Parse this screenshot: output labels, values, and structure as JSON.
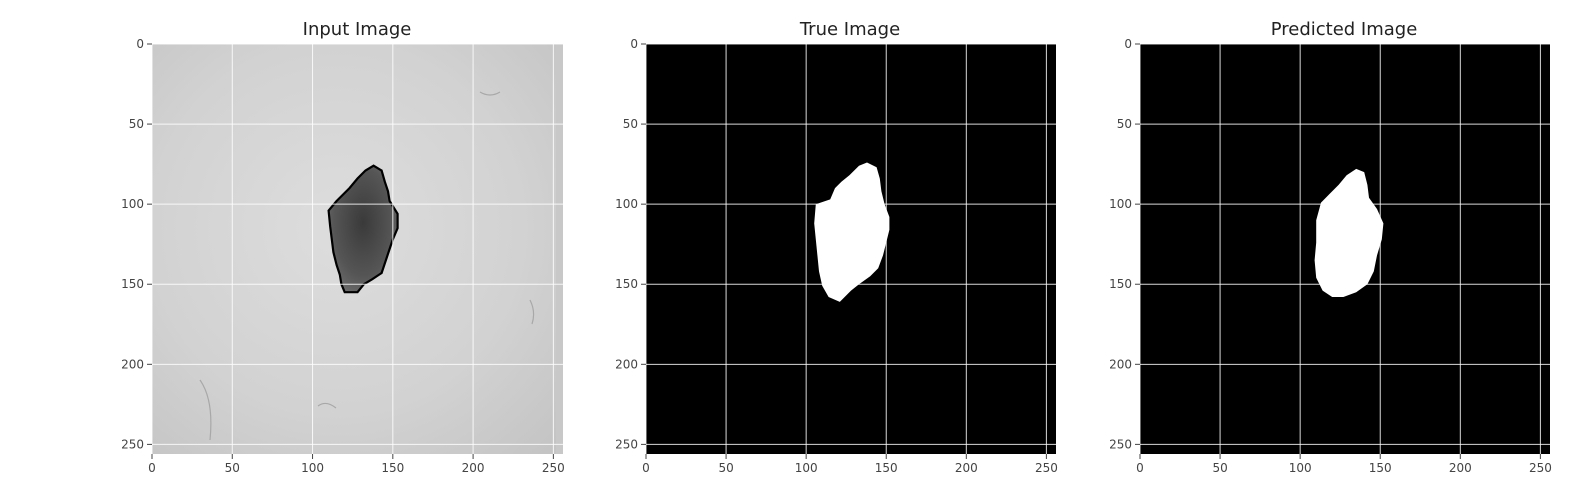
{
  "figure": {
    "panels": [
      {
        "id": "input",
        "title": "Input Image",
        "type": "grayscale-photo"
      },
      {
        "id": "true",
        "title": "True Image",
        "type": "binary-mask"
      },
      {
        "id": "predicted",
        "title": "Predicted Image",
        "type": "binary-mask"
      }
    ],
    "axes": {
      "x_ticks": [
        "0",
        "50",
        "100",
        "150",
        "200",
        "250"
      ],
      "y_ticks": [
        "0",
        "50",
        "100",
        "150",
        "200",
        "250"
      ],
      "x_tick_values": [
        0,
        50,
        100,
        150,
        200,
        250
      ],
      "y_tick_values": [
        0,
        50,
        100,
        150,
        200,
        250
      ],
      "xlim": [
        0,
        256
      ],
      "ylim": [
        256,
        0
      ],
      "grid": true,
      "grid_color": "#ffffff"
    },
    "colors": {
      "mask_background": "#000000",
      "mask_foreground": "#ffffff",
      "skin": "#d4d4d4",
      "lesion": "#4a4a4a",
      "lesion_outline": "#000000"
    },
    "regions": {
      "input_lesion_outline": [
        [
          138,
          76
        ],
        [
          143,
          79
        ],
        [
          145,
          86
        ],
        [
          147,
          92
        ],
        [
          148,
          98
        ],
        [
          153,
          106
        ],
        [
          153,
          115
        ],
        [
          150,
          122
        ],
        [
          148,
          128
        ],
        [
          146,
          134
        ],
        [
          143,
          143
        ],
        [
          137,
          147
        ],
        [
          132,
          150
        ],
        [
          128,
          155
        ],
        [
          120,
          155
        ],
        [
          118,
          150
        ],
        [
          117,
          144
        ],
        [
          115,
          138
        ],
        [
          113,
          130
        ],
        [
          112,
          122
        ],
        [
          111,
          114
        ],
        [
          110,
          104
        ],
        [
          115,
          98
        ],
        [
          123,
          90
        ],
        [
          128,
          84
        ],
        [
          133,
          79
        ]
      ],
      "true_mask": [
        [
          138,
          74
        ],
        [
          144,
          77
        ],
        [
          146,
          84
        ],
        [
          147,
          92
        ],
        [
          149,
          100
        ],
        [
          152,
          108
        ],
        [
          152,
          116
        ],
        [
          150,
          124
        ],
        [
          148,
          132
        ],
        [
          145,
          140
        ],
        [
          140,
          145
        ],
        [
          133,
          150
        ],
        [
          128,
          154
        ],
        [
          121,
          161
        ],
        [
          114,
          158
        ],
        [
          110,
          151
        ],
        [
          108,
          142
        ],
        [
          107,
          132
        ],
        [
          106,
          122
        ],
        [
          105,
          112
        ],
        [
          106,
          100
        ],
        [
          115,
          97
        ],
        [
          118,
          90
        ],
        [
          122,
          86
        ],
        [
          127,
          82
        ],
        [
          133,
          76
        ]
      ],
      "predicted_mask": [
        [
          135,
          78
        ],
        [
          140,
          80
        ],
        [
          142,
          88
        ],
        [
          143,
          96
        ],
        [
          148,
          103
        ],
        [
          152,
          112
        ],
        [
          151,
          122
        ],
        [
          148,
          132
        ],
        [
          146,
          142
        ],
        [
          142,
          150
        ],
        [
          135,
          155
        ],
        [
          127,
          158
        ],
        [
          120,
          158
        ],
        [
          114,
          154
        ],
        [
          110,
          146
        ],
        [
          109,
          135
        ],
        [
          110,
          124
        ],
        [
          110,
          110
        ],
        [
          113,
          99
        ],
        [
          118,
          94
        ],
        [
          124,
          88
        ],
        [
          129,
          82
        ]
      ]
    }
  }
}
